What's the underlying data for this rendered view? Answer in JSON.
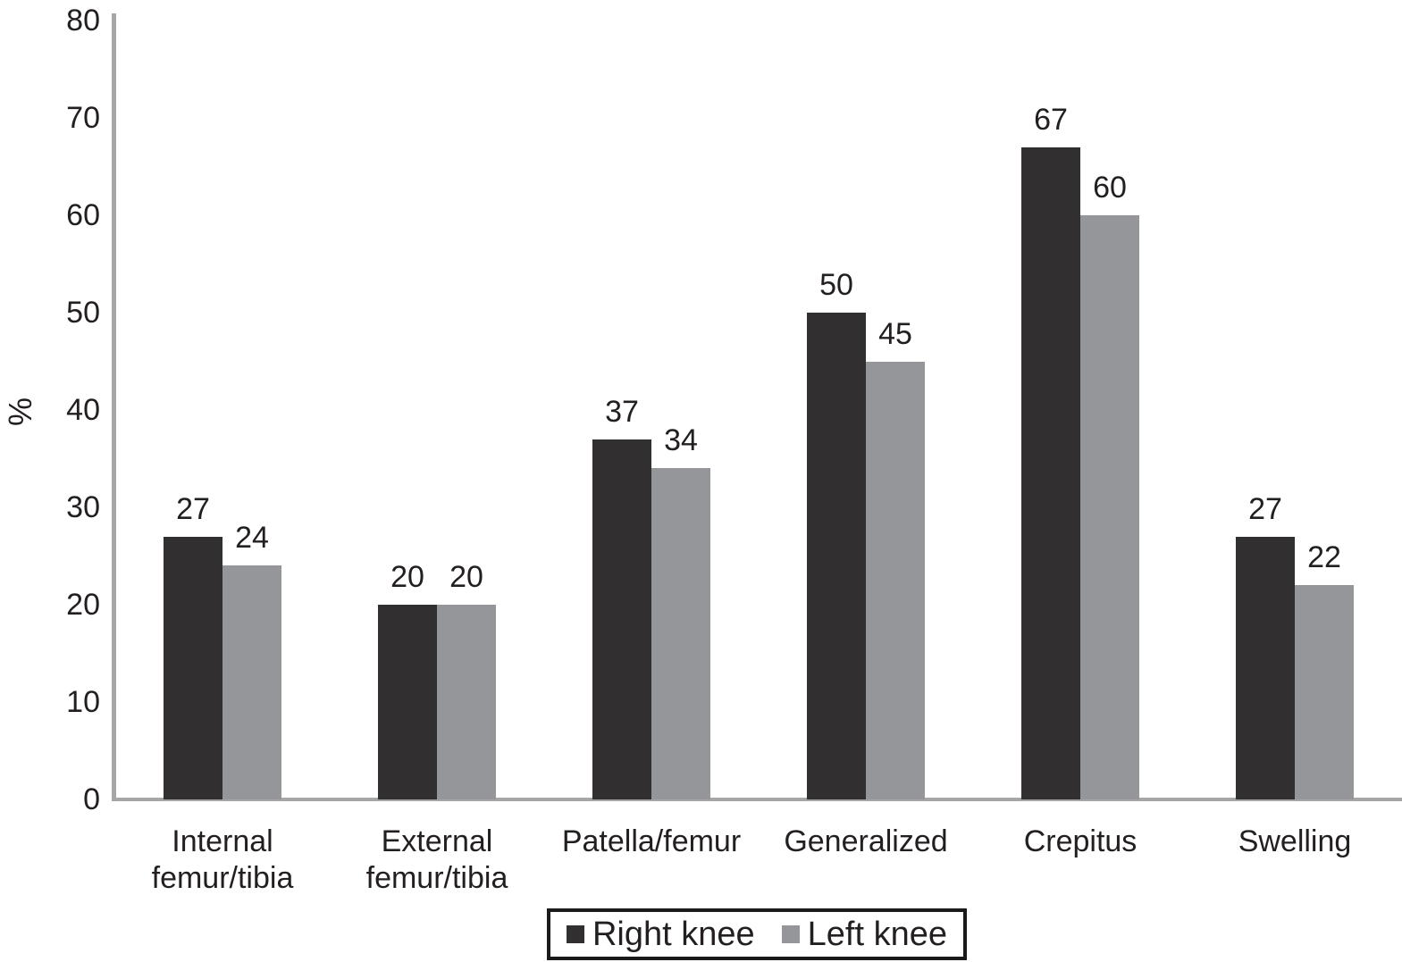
{
  "chart_data": {
    "type": "bar",
    "title": "",
    "ylabel": "%",
    "xlabel": "",
    "categories": [
      "Internal\nfemur/tibia",
      "External\nfemur/tibia",
      "Patella/femur",
      "Generalized",
      "Crepitus",
      "Swelling"
    ],
    "series": [
      {
        "name": "Right knee",
        "color": "#322f30",
        "values": [
          27,
          20,
          37,
          50,
          67,
          27
        ]
      },
      {
        "name": "Left knee",
        "color": "#949699",
        "values": [
          24,
          20,
          34,
          45,
          60,
          22
        ]
      }
    ],
    "ylim": [
      0,
      80
    ],
    "yticks": [
      0,
      10,
      20,
      30,
      40,
      50,
      60,
      70,
      80
    ],
    "value_labels_shown": true,
    "grid": false,
    "legend": {
      "position": "bottom-center",
      "boxed": true
    },
    "axis_color": "#a6a6a6",
    "text_color": "#231f20",
    "background": "#ffffff"
  }
}
